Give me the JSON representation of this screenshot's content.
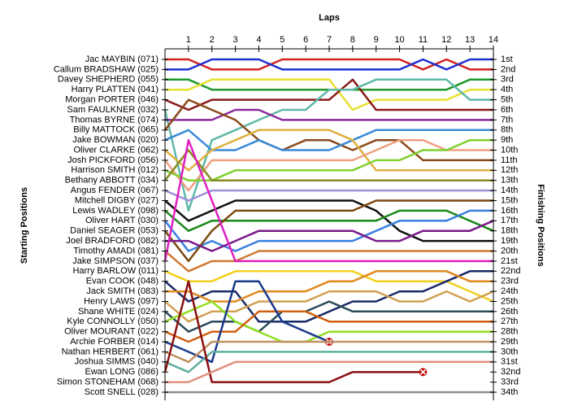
{
  "chart_data": {
    "type": "lapchart",
    "title": "Laps",
    "y_label": "Starting Positions",
    "y2_label": "Finishing Positions",
    "x": [
      0,
      1,
      2,
      3,
      4,
      5,
      6,
      7,
      8,
      9,
      10,
      11,
      12,
      13,
      14
    ],
    "xlim": [
      0,
      14
    ],
    "xticks": [
      1,
      2,
      3,
      4,
      5,
      6,
      7,
      8,
      9,
      10,
      11,
      12,
      13,
      14
    ],
    "ylim": [
      1,
      34
    ],
    "y2ticks": [
      {
        "value": 1,
        "label": "1st"
      },
      {
        "value": 2,
        "label": "2nd"
      },
      {
        "value": 3,
        "label": "3rd"
      },
      {
        "value": 4,
        "label": "4th"
      },
      {
        "value": 5,
        "label": "5th"
      },
      {
        "value": 6,
        "label": "6th"
      },
      {
        "value": 7,
        "label": "7th"
      },
      {
        "value": 8,
        "label": "8th"
      },
      {
        "value": 9,
        "label": "9th"
      },
      {
        "value": 10,
        "label": "10th"
      },
      {
        "value": 11,
        "label": "11th"
      },
      {
        "value": 12,
        "label": "12th"
      },
      {
        "value": 13,
        "label": "13th"
      },
      {
        "value": 14,
        "label": "14th"
      },
      {
        "value": 15,
        "label": "15th"
      },
      {
        "value": 16,
        "label": "16th"
      },
      {
        "value": 17,
        "label": "17th"
      },
      {
        "value": 18,
        "label": "18th"
      },
      {
        "value": 19,
        "label": "19th"
      },
      {
        "value": 20,
        "label": "20th"
      },
      {
        "value": 21,
        "label": "21st"
      },
      {
        "value": 22,
        "label": "22nd"
      },
      {
        "value": 23,
        "label": "23rd"
      },
      {
        "value": 24,
        "label": "24th"
      },
      {
        "value": 25,
        "label": "25th"
      },
      {
        "value": 26,
        "label": "26th"
      },
      {
        "value": 27,
        "label": "27th"
      },
      {
        "value": 28,
        "label": "28th"
      },
      {
        "value": 29,
        "label": "29th"
      },
      {
        "value": 30,
        "label": "30th"
      },
      {
        "value": 31,
        "label": "31st"
      },
      {
        "value": 32,
        "label": "32nd"
      },
      {
        "value": 33,
        "label": "33rd"
      },
      {
        "value": 34,
        "label": "34th"
      }
    ],
    "series": [
      {
        "name": "Jac MAYBIN (071)",
        "color": "#d42020",
        "values": [
          1,
          1,
          2,
          2,
          2,
          1,
          1,
          1,
          1,
          1,
          1,
          2,
          1,
          2,
          2
        ]
      },
      {
        "name": "Callum BRADSHAW (025)",
        "color": "#1f2fd0",
        "values": [
          2,
          2,
          1,
          1,
          1,
          2,
          2,
          2,
          2,
          2,
          2,
          1,
          2,
          1,
          1
        ]
      },
      {
        "name": "Davey SHEPHERD (055)",
        "color": "#1f9a2a",
        "values": [
          3,
          3,
          4,
          4,
          4,
          4,
          4,
          4,
          4,
          4,
          4,
          4,
          4,
          3,
          3
        ]
      },
      {
        "name": "Harry PLATTEN (041)",
        "color": "#e8e030",
        "values": [
          4,
          4,
          3,
          3,
          3,
          3,
          3,
          3,
          6,
          5,
          5,
          5,
          5,
          4,
          4
        ]
      },
      {
        "name": "Morgan PORTER (046)",
        "color": "#8b1a1a",
        "values": [
          5,
          6,
          5,
          5,
          5,
          5,
          5,
          5,
          3,
          6,
          6,
          6,
          6,
          6,
          6
        ]
      },
      {
        "name": "Sam FAULKNER (032)",
        "color": "#5fb8a8",
        "values": [
          6,
          16,
          9,
          8,
          7,
          6,
          6,
          4,
          4,
          3,
          3,
          3,
          3,
          5,
          5
        ]
      },
      {
        "name": "Thomas BYRNE (074)",
        "color": "#8a2a9a",
        "values": [
          7,
          7,
          7,
          6,
          6,
          7,
          7,
          7,
          7,
          7,
          7,
          7,
          7,
          7,
          7
        ]
      },
      {
        "name": "Billy MATTOCK (065)",
        "color": "#8a4a1a",
        "values": [
          8,
          5,
          6,
          7,
          9,
          10,
          9,
          9,
          10,
          9,
          9,
          11,
          11,
          11,
          11
        ]
      },
      {
        "name": "Jake BOWMAN (020)",
        "color": "#3a8ad8",
        "values": [
          9,
          8,
          10,
          10,
          9,
          10,
          10,
          10,
          9,
          8,
          8,
          8,
          8,
          8,
          8
        ]
      },
      {
        "name": "Oliver CLARKE (062)",
        "color": "#e0b040",
        "values": [
          10,
          12,
          10,
          9,
          8,
          8,
          8,
          8,
          9,
          12,
          12,
          12,
          12,
          12,
          12
        ]
      },
      {
        "name": "Josh PICKFORD (056)",
        "color": "#f0a080",
        "values": [
          11,
          14,
          11,
          11,
          11,
          11,
          11,
          11,
          11,
          10,
          9,
          9,
          10,
          10,
          10
        ]
      },
      {
        "name": "Harrison SMITH (012)",
        "color": "#80d030",
        "values": [
          12,
          13,
          13,
          12,
          12,
          12,
          12,
          12,
          12,
          11,
          11,
          10,
          10,
          9,
          9
        ]
      },
      {
        "name": "Bethany ABBOTT (034)",
        "color": "#8a8a20",
        "values": [
          13,
          10,
          13,
          13,
          13,
          13,
          13,
          13,
          13,
          13,
          13,
          13,
          13,
          13,
          13
        ]
      },
      {
        "name": "Angus FENDER (067)",
        "color": "#a090d8",
        "values": [
          14,
          15,
          14,
          14,
          14,
          14,
          14,
          14,
          14,
          14,
          14,
          14,
          14,
          14,
          14
        ]
      },
      {
        "name": "Mitchell DIGBY (027)",
        "color": "#101010",
        "values": [
          15,
          17,
          16,
          15,
          15,
          15,
          15,
          15,
          15,
          16,
          18,
          19,
          19,
          19,
          19
        ]
      },
      {
        "name": "Lewis WADLEY (098)",
        "color": "#1a8a1a",
        "values": [
          16,
          18,
          17,
          17,
          17,
          17,
          17,
          17,
          17,
          17,
          16,
          16,
          16,
          17,
          18
        ]
      },
      {
        "name": "Oliver HART (030)",
        "color": "#3a80e0",
        "values": [
          17,
          20,
          19,
          20,
          19,
          19,
          19,
          19,
          19,
          18,
          17,
          17,
          17,
          16,
          16
        ]
      },
      {
        "name": "Daniel SEAGER (053)",
        "color": "#7a4a10",
        "values": [
          18,
          21,
          18,
          16,
          16,
          16,
          16,
          16,
          16,
          15,
          15,
          15,
          15,
          15,
          15
        ]
      },
      {
        "name": "Joel BRADFORD (082)",
        "color": "#7a1a8a",
        "values": [
          19,
          19,
          20,
          19,
          18,
          18,
          18,
          18,
          18,
          19,
          19,
          18,
          18,
          18,
          17
        ]
      },
      {
        "name": "Timothy AMADI (081)",
        "color": "#d07830",
        "values": [
          20,
          22,
          21,
          21,
          20,
          20,
          20,
          20,
          20,
          20,
          20,
          20,
          20,
          20,
          20
        ]
      },
      {
        "name": "Jake SIMPSON (037)",
        "color": "#e020c0",
        "values": [
          21,
          9,
          15,
          21,
          21,
          21,
          21,
          21,
          21,
          21,
          21,
          21,
          21,
          21,
          21
        ]
      },
      {
        "name": "Harry BARLOW (011)",
        "color": "#f0d020",
        "values": [
          22,
          23,
          23,
          22,
          22,
          22,
          22,
          22,
          22,
          23,
          23,
          23,
          23,
          24,
          25
        ]
      },
      {
        "name": "Evan COOK (048)",
        "color": "#1a2a6a",
        "values": [
          23,
          25,
          24,
          24,
          27,
          27,
          27,
          26,
          25,
          25,
          24,
          24,
          23,
          22,
          22
        ]
      },
      {
        "name": "Jack SMITH (083)",
        "color": "#e08a20",
        "values": [
          24,
          24,
          25,
          25,
          24,
          24,
          24,
          23,
          23,
          22,
          22,
          22,
          22,
          23,
          23
        ]
      },
      {
        "name": "Henry LAWS (097)",
        "color": "#d0a050",
        "values": [
          25,
          27,
          26,
          26,
          25,
          25,
          25,
          24,
          24,
          24,
          25,
          25,
          24,
          25,
          24
        ]
      },
      {
        "name": "Shane WHITE (024)",
        "color": "#2a4a5a",
        "values": [
          26,
          28,
          27,
          27,
          28,
          26,
          26,
          25,
          26,
          26,
          26,
          26,
          26,
          26,
          26
        ]
      },
      {
        "name": "Kyle CONNOLLY (050)",
        "color": "#90e020",
        "values": [
          27,
          26,
          25,
          27,
          28,
          29,
          29,
          28,
          28,
          28,
          28,
          28,
          28,
          28,
          28
        ]
      },
      {
        "name": "Oliver MOURANT (022)",
        "color": "#d06010",
        "values": [
          28,
          29,
          28,
          28,
          26,
          26,
          26,
          27,
          27,
          27,
          27,
          27,
          27,
          27,
          27
        ]
      },
      {
        "name": "Archie FORBER (014)",
        "color": "#1a3a8a",
        "retired": true,
        "values": [
          29,
          30,
          31,
          23,
          23,
          27,
          28,
          29,
          null,
          null,
          null,
          null,
          null,
          null,
          null
        ]
      },
      {
        "name": "Nathan HERBERT (061)",
        "color": "#c09060",
        "values": [
          30,
          31,
          29,
          29,
          29,
          29,
          29,
          29,
          29,
          29,
          29,
          29,
          29,
          29,
          29
        ]
      },
      {
        "name": "Joshua SIMMS (040)",
        "color": "#60b0a0",
        "values": [
          31,
          32,
          30,
          30,
          30,
          30,
          30,
          30,
          30,
          30,
          30,
          30,
          30,
          30,
          30
        ]
      },
      {
        "name": "Ewan LONG (086)",
        "color": "#8a1010",
        "retired": true,
        "values": [
          32,
          23,
          33,
          33,
          33,
          33,
          33,
          33,
          32,
          32,
          32,
          32,
          null,
          null,
          null
        ]
      },
      {
        "name": "Simon STONEHAM (068)",
        "color": "#e09080",
        "values": [
          33,
          33,
          32,
          31,
          31,
          31,
          31,
          31,
          31,
          31,
          31,
          31,
          31,
          31,
          31
        ]
      },
      {
        "name": "Scott SNELL (028)",
        "color": "#909090",
        "values": [
          34,
          34,
          34,
          34,
          34,
          34,
          34,
          34,
          34,
          34,
          34,
          34,
          34,
          34,
          34
        ]
      }
    ]
  }
}
